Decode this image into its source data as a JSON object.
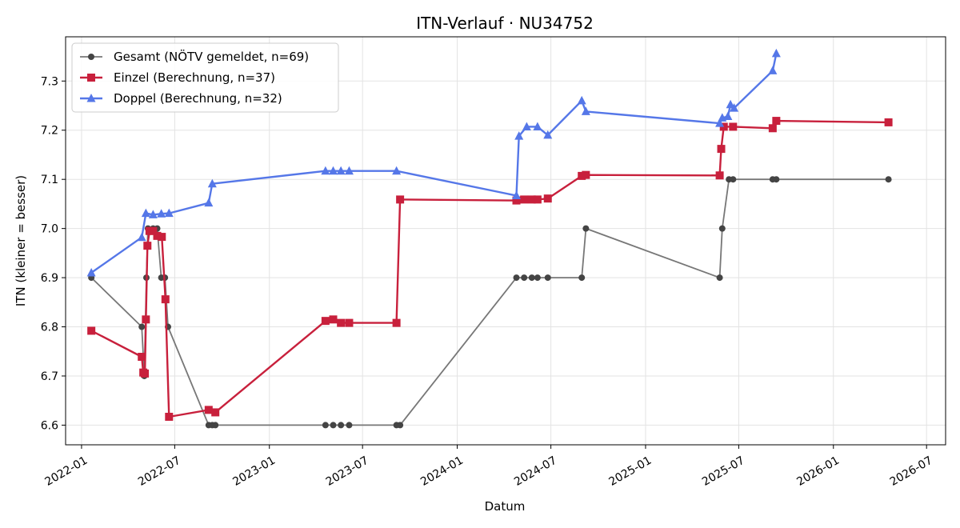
{
  "chart_data": {
    "type": "line",
    "title": "ITN-Verlauf · NU34752",
    "xlabel": "Datum",
    "ylabel": "ITN  (kleiner = besser)",
    "x_axis_type": "date",
    "xlim": [
      "2021-12-01",
      "2026-08-07"
    ],
    "ylim": [
      6.56,
      7.39
    ],
    "x_ticks": [
      "2022-01",
      "2022-07",
      "2023-01",
      "2023-07",
      "2024-01",
      "2024-07",
      "2025-01",
      "2025-07",
      "2026-01",
      "2026-07"
    ],
    "y_ticks": [
      6.6,
      6.7,
      6.8,
      6.9,
      7.0,
      7.1,
      7.2,
      7.3
    ],
    "grid": true,
    "legend_position": "top-left",
    "series": [
      {
        "name": "Gesamt (NÖTV gemeldet, n=69)",
        "color": "#777777",
        "marker": "circle",
        "points": [
          [
            "2022-01-20",
            6.9
          ],
          [
            "2022-04-28",
            6.8
          ],
          [
            "2022-05-03",
            6.7
          ],
          [
            "2022-05-07",
            6.9
          ],
          [
            "2022-05-10",
            7.0
          ],
          [
            "2022-05-20",
            7.0
          ],
          [
            "2022-05-28",
            7.0
          ],
          [
            "2022-06-05",
            6.9
          ],
          [
            "2022-06-12",
            6.9
          ],
          [
            "2022-06-18",
            6.8
          ],
          [
            "2022-09-05",
            6.6
          ],
          [
            "2022-09-12",
            6.6
          ],
          [
            "2022-09-18",
            6.6
          ],
          [
            "2023-04-20",
            6.6
          ],
          [
            "2023-05-05",
            6.6
          ],
          [
            "2023-05-20",
            6.6
          ],
          [
            "2023-06-05",
            6.6
          ],
          [
            "2023-09-05",
            6.6
          ],
          [
            "2023-09-12",
            6.6
          ],
          [
            "2024-04-25",
            6.9
          ],
          [
            "2024-05-10",
            6.9
          ],
          [
            "2024-05-25",
            6.9
          ],
          [
            "2024-06-05",
            6.9
          ],
          [
            "2024-06-25",
            6.9
          ],
          [
            "2024-08-30",
            6.9
          ],
          [
            "2024-09-07",
            7.0
          ],
          [
            "2025-05-25",
            6.9
          ],
          [
            "2025-05-30",
            7.0
          ],
          [
            "2025-06-12",
            7.1
          ],
          [
            "2025-06-20",
            7.1
          ],
          [
            "2025-09-05",
            7.1
          ],
          [
            "2025-09-12",
            7.1
          ],
          [
            "2026-04-18",
            7.1
          ]
        ]
      },
      {
        "name": "Einzel (Berechnung, n=37)",
        "color": "#c8203c",
        "marker": "square",
        "points": [
          [
            "2022-01-20",
            6.792
          ],
          [
            "2022-04-28",
            6.739
          ],
          [
            "2022-05-01",
            6.707
          ],
          [
            "2022-05-04",
            6.705
          ],
          [
            "2022-05-06",
            6.815
          ],
          [
            "2022-05-09",
            6.965
          ],
          [
            "2022-05-13",
            6.995
          ],
          [
            "2022-05-20",
            6.995
          ],
          [
            "2022-05-28",
            6.985
          ],
          [
            "2022-06-06",
            6.983
          ],
          [
            "2022-06-13",
            6.856
          ],
          [
            "2022-06-20",
            6.617
          ],
          [
            "2022-09-05",
            6.631
          ],
          [
            "2022-09-18",
            6.626
          ],
          [
            "2023-04-20",
            6.812
          ],
          [
            "2023-05-05",
            6.815
          ],
          [
            "2023-05-20",
            6.808
          ],
          [
            "2023-06-05",
            6.808
          ],
          [
            "2023-09-05",
            6.808
          ],
          [
            "2023-09-12",
            7.059
          ],
          [
            "2024-04-25",
            7.057
          ],
          [
            "2024-05-10",
            7.059
          ],
          [
            "2024-05-25",
            7.059
          ],
          [
            "2024-06-05",
            7.059
          ],
          [
            "2024-06-25",
            7.061
          ],
          [
            "2024-08-30",
            7.107
          ],
          [
            "2024-09-07",
            7.109
          ],
          [
            "2025-05-25",
            7.108
          ],
          [
            "2025-05-28",
            7.162
          ],
          [
            "2025-06-02",
            7.207
          ],
          [
            "2025-06-20",
            7.207
          ],
          [
            "2025-09-05",
            7.204
          ],
          [
            "2025-09-12",
            7.219
          ],
          [
            "2026-04-18",
            7.216
          ]
        ]
      },
      {
        "name": "Doppel (Berechnung, n=32)",
        "color": "#5577e8",
        "marker": "triangle",
        "points": [
          [
            "2022-01-20",
            6.91
          ],
          [
            "2022-04-28",
            6.982
          ],
          [
            "2022-05-06",
            7.031
          ],
          [
            "2022-05-20",
            7.028
          ],
          [
            "2022-06-05",
            7.03
          ],
          [
            "2022-06-20",
            7.031
          ],
          [
            "2022-09-05",
            7.052
          ],
          [
            "2022-09-12",
            7.091
          ],
          [
            "2023-04-20",
            7.117
          ],
          [
            "2023-05-05",
            7.117
          ],
          [
            "2023-05-20",
            7.117
          ],
          [
            "2023-06-05",
            7.117
          ],
          [
            "2023-09-05",
            7.117
          ],
          [
            "2024-04-25",
            7.067
          ],
          [
            "2024-04-30",
            7.188
          ],
          [
            "2024-05-15",
            7.207
          ],
          [
            "2024-06-05",
            7.207
          ],
          [
            "2024-06-25",
            7.19
          ],
          [
            "2024-08-30",
            7.26
          ],
          [
            "2024-09-07",
            7.238
          ],
          [
            "2025-05-25",
            7.214
          ],
          [
            "2025-05-30",
            7.225
          ],
          [
            "2025-06-10",
            7.228
          ],
          [
            "2025-06-15",
            7.252
          ],
          [
            "2025-06-22",
            7.245
          ],
          [
            "2025-09-05",
            7.321
          ],
          [
            "2025-09-12",
            7.356
          ]
        ]
      }
    ]
  }
}
